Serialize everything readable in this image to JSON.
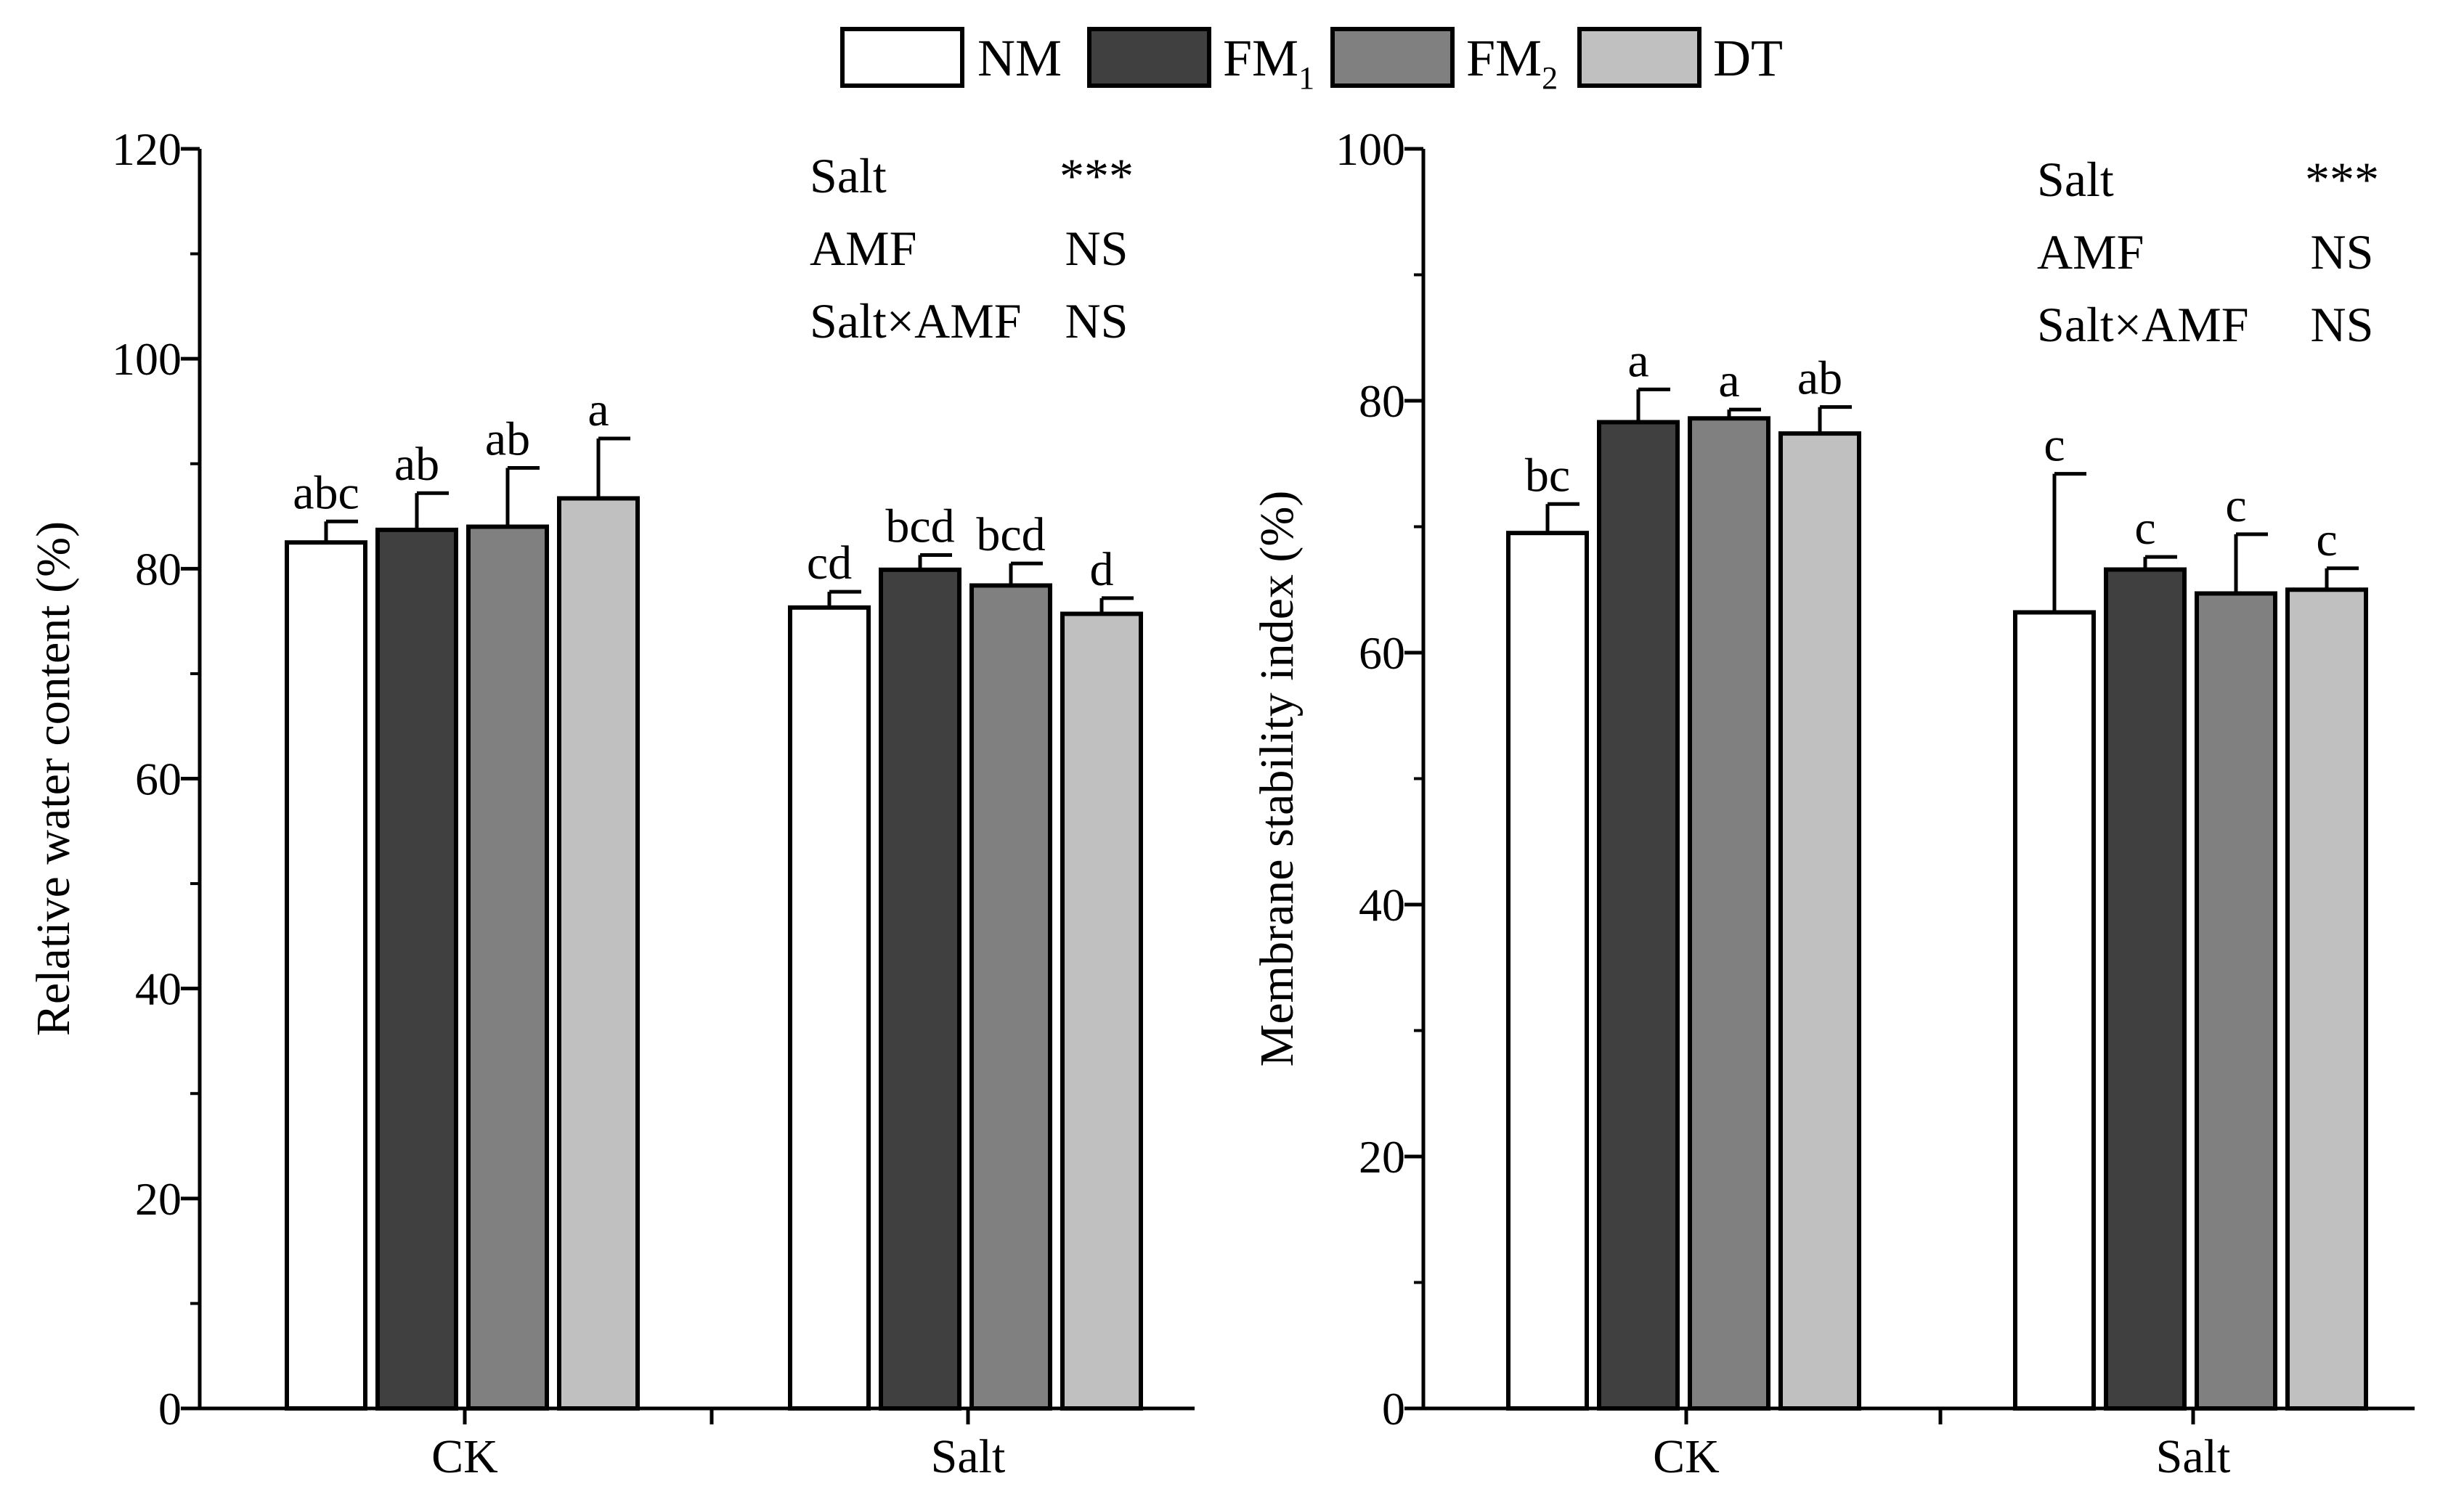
{
  "legend": {
    "items": [
      {
        "label": "NM",
        "sub": "",
        "color": "#ffffff"
      },
      {
        "label": "FM",
        "sub": "1",
        "color": "#404040"
      },
      {
        "label": "FM",
        "sub": "2",
        "color": "#808080"
      },
      {
        "label": "DT",
        "sub": "",
        "color": "#c0c0c0"
      }
    ]
  },
  "chart_data": [
    {
      "type": "bar",
      "ylabel": "Relative water content (%)",
      "ylim": [
        0,
        120
      ],
      "yticks": [
        0,
        20,
        40,
        60,
        80,
        100,
        120
      ],
      "categories": [
        "CK",
        "Salt"
      ],
      "series": [
        {
          "name": "NM",
          "values": [
            82.5,
            76.3
          ],
          "errors": [
            2.0,
            1.5
          ],
          "letters": [
            "abc",
            "cd"
          ]
        },
        {
          "name": "FM1",
          "values": [
            83.7,
            79.9
          ],
          "errors": [
            3.5,
            1.4
          ],
          "letters": [
            "ab",
            "bcd"
          ]
        },
        {
          "name": "FM2",
          "values": [
            84.0,
            78.4
          ],
          "errors": [
            5.6,
            2.1
          ],
          "letters": [
            "ab",
            "bcd"
          ]
        },
        {
          "name": "DT",
          "values": [
            86.7,
            75.7
          ],
          "errors": [
            5.7,
            1.5
          ],
          "letters": [
            "a",
            "d"
          ]
        }
      ],
      "stats": [
        {
          "term": "Salt",
          "result": "***"
        },
        {
          "term": "AMF",
          "result": "NS"
        },
        {
          "term": "Salt×AMF",
          "result": "NS"
        }
      ]
    },
    {
      "type": "bar",
      "ylabel": "Membrane stability index (%)",
      "ylim": [
        0,
        100
      ],
      "yticks": [
        0,
        20,
        40,
        60,
        80,
        100
      ],
      "categories": [
        "CK",
        "Salt"
      ],
      "series": [
        {
          "name": "NM",
          "values": [
            69.5,
            63.2
          ],
          "errors": [
            2.3,
            11.0
          ],
          "letters": [
            "bc",
            "c"
          ]
        },
        {
          "name": "FM1",
          "values": [
            78.3,
            66.6
          ],
          "errors": [
            2.6,
            1.0
          ],
          "letters": [
            "a",
            "c"
          ]
        },
        {
          "name": "FM2",
          "values": [
            78.6,
            64.7
          ],
          "errors": [
            0.7,
            4.7
          ],
          "letters": [
            "a",
            "c"
          ]
        },
        {
          "name": "DT",
          "values": [
            77.4,
            65.0
          ],
          "errors": [
            2.1,
            1.7
          ],
          "letters": [
            "ab",
            "c"
          ]
        }
      ],
      "stats": [
        {
          "term": "Salt",
          "result": "***"
        },
        {
          "term": "AMF",
          "result": "NS"
        },
        {
          "term": "Salt×AMF",
          "result": "NS"
        }
      ]
    }
  ]
}
